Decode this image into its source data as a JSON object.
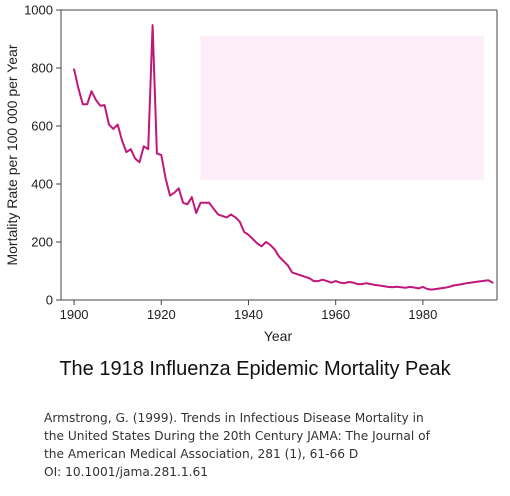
{
  "chart_data": {
    "type": "line",
    "title": "The 1918 Influenza Epidemic Mortality Peak",
    "xlabel": "Year",
    "ylabel": "Mortality Rate per 100 000 per Year",
    "xlim": [
      1897,
      1997
    ],
    "ylim": [
      0,
      1000
    ],
    "xticks": [
      1900,
      1920,
      1940,
      1960,
      1980
    ],
    "yticks": [
      0,
      200,
      400,
      600,
      800,
      1000
    ],
    "grid": false,
    "colors": {
      "line": "#c2177a",
      "shaded_region": "#fbeef8",
      "axes": "#444444"
    },
    "shaded_region": {
      "x": [
        1929,
        1994
      ],
      "y": [
        415,
        910
      ]
    },
    "series": [
      {
        "x": [
          1900,
          1901,
          1902,
          1903,
          1904,
          1905,
          1906,
          1907,
          1908,
          1909,
          1910,
          1911,
          1912,
          1913,
          1914,
          1915,
          1916,
          1917,
          1918,
          1919,
          1920,
          1921,
          1922,
          1923,
          1924,
          1925,
          1926,
          1927,
          1928,
          1929,
          1930,
          1931,
          1932,
          1933,
          1934,
          1935,
          1936,
          1937,
          1938,
          1939,
          1940,
          1941,
          1942,
          1943,
          1944,
          1945,
          1946,
          1947,
          1948,
          1949,
          1950,
          1951,
          1952,
          1953,
          1954,
          1955,
          1956,
          1957,
          1958,
          1959,
          1960,
          1961,
          1962,
          1963,
          1964,
          1965,
          1966,
          1967,
          1968,
          1969,
          1970,
          1971,
          1972,
          1973,
          1974,
          1975,
          1976,
          1977,
          1978,
          1979,
          1980,
          1981,
          1982,
          1983,
          1984,
          1985,
          1986,
          1987,
          1988,
          1989,
          1990,
          1991,
          1992,
          1993,
          1994,
          1995,
          1996
        ],
        "y": [
          795,
          730,
          675,
          675,
          720,
          690,
          670,
          672,
          605,
          590,
          605,
          550,
          510,
          520,
          488,
          475,
          530,
          520,
          948,
          505,
          500,
          420,
          360,
          370,
          385,
          335,
          330,
          355,
          300,
          335,
          335,
          335,
          315,
          295,
          290,
          285,
          295,
          285,
          270,
          235,
          225,
          210,
          195,
          185,
          200,
          190,
          175,
          150,
          135,
          120,
          95,
          90,
          85,
          80,
          75,
          65,
          65,
          70,
          65,
          60,
          65,
          60,
          58,
          62,
          60,
          55,
          55,
          58,
          55,
          52,
          50,
          48,
          45,
          44,
          46,
          44,
          42,
          45,
          43,
          40,
          45,
          38,
          36,
          38,
          40,
          42,
          45,
          50,
          52,
          55,
          58,
          60,
          62,
          64,
          66,
          68,
          60
        ]
      }
    ]
  },
  "citation": {
    "lines": [
      "Armstrong, G. (1999). Trends in Infectious Disease Mortality in",
      "the United States During the 20th Century JAMA: The Journal of",
      "the American Medical Association, 281 (1), 61-66 D",
      "OI: 10.1001/jama.281.1.61"
    ]
  }
}
